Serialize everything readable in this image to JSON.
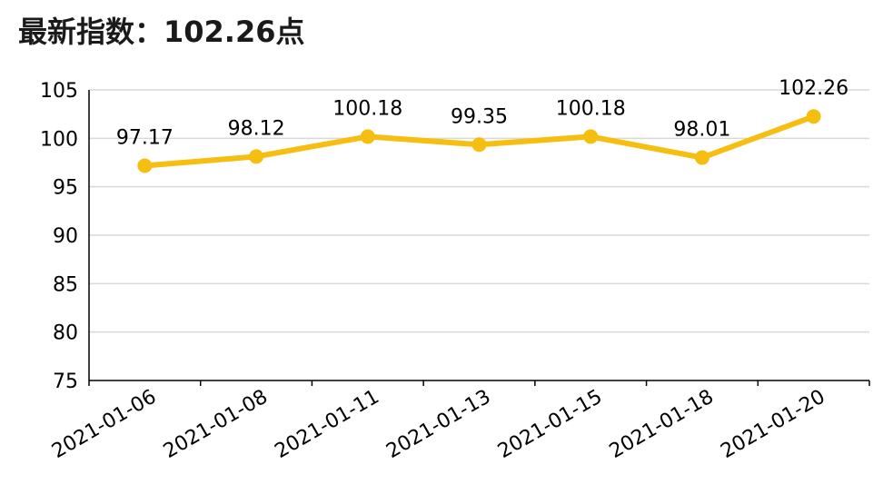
{
  "chart_data": {
    "type": "line",
    "title": "最新指数：102.26点",
    "categories": [
      "2021-01-06",
      "2021-01-08",
      "2021-01-11",
      "2021-01-13",
      "2021-01-15",
      "2021-01-18",
      "2021-01-20"
    ],
    "series": [
      {
        "values": [
          97.17,
          98.12,
          100.18,
          99.35,
          100.18,
          98.01,
          102.26
        ],
        "labels": [
          "97.17",
          "98.12",
          "100.18",
          "99.35",
          "100.18",
          "98.01",
          "102.26"
        ],
        "color": "#F5BE10"
      }
    ],
    "ylim": [
      75,
      105
    ],
    "yticks": [
      75,
      80,
      85,
      90,
      95,
      100,
      105
    ],
    "grid": true,
    "legend": "none",
    "colors": {
      "line": "#F5BE10",
      "grid": "#d9d9d9",
      "axis": "#000000"
    }
  }
}
